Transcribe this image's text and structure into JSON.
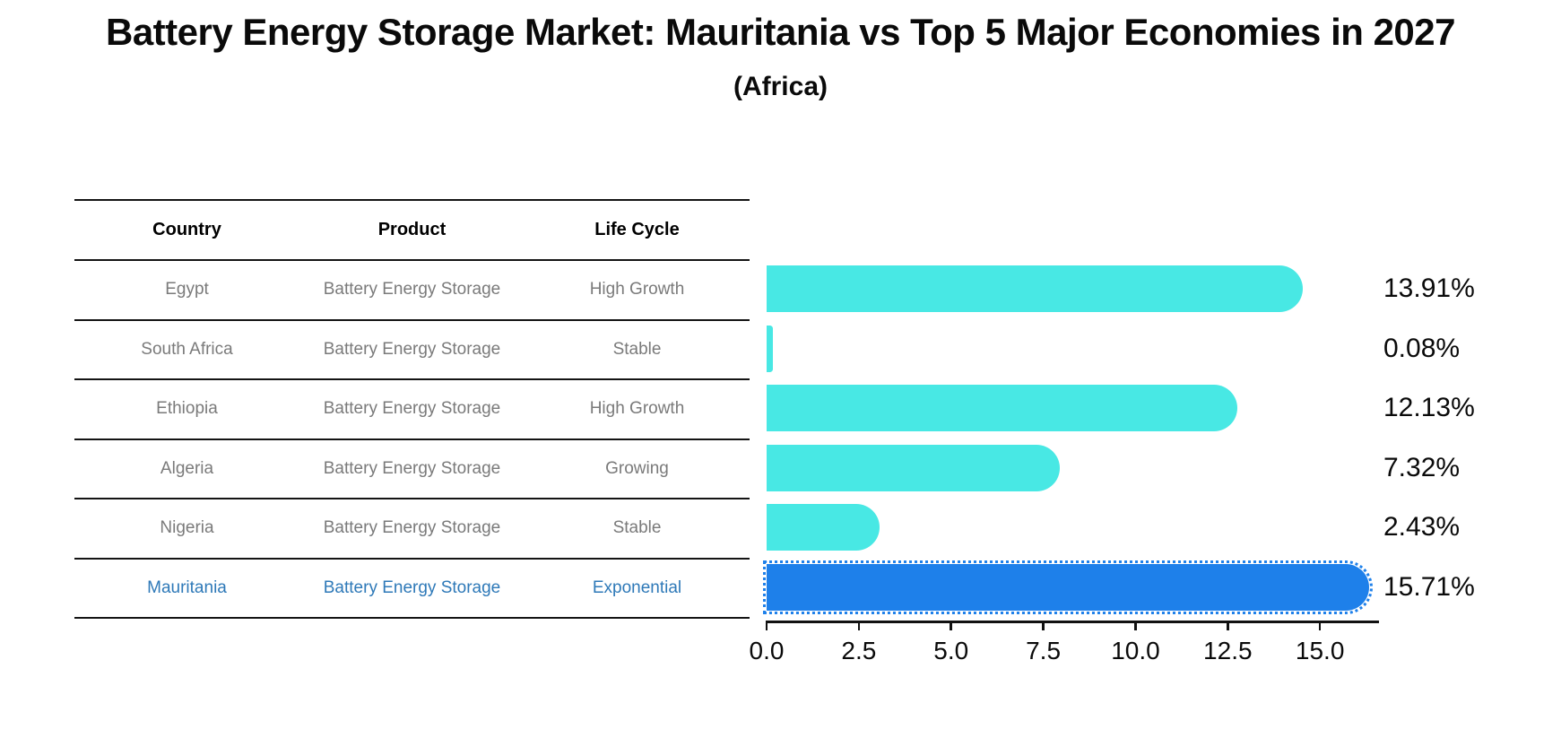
{
  "chart_data": {
    "type": "bar",
    "orientation": "horizontal",
    "title": "Battery Energy Storage Market: Mauritania vs Top 5 Major Economies in 2027",
    "subtitle": "(Africa)",
    "categories": [
      "Egypt",
      "South Africa",
      "Ethiopia",
      "Algeria",
      "Nigeria",
      "Mauritania"
    ],
    "values": [
      13.91,
      0.08,
      12.13,
      7.32,
      2.43,
      15.71
    ],
    "value_labels": [
      "13.91%",
      "0.08%",
      "12.13%",
      "7.32%",
      "2.43%",
      "15.71%"
    ],
    "xlabel": "",
    "ylabel": "",
    "xlim": [
      0,
      16.6
    ],
    "xticks": [
      "0.0",
      "2.5",
      "5.0",
      "7.5",
      "10.0",
      "12.5",
      "15.0"
    ],
    "grid": false,
    "legend": false,
    "bar_color": "#48e8e4",
    "highlight_color": "#1e80ea",
    "highlight_index": 5
  },
  "table": {
    "headers": [
      "Country",
      "Product",
      "Life Cycle"
    ],
    "rows": [
      {
        "country": "Egypt",
        "product": "Battery Energy Storage",
        "life_cycle": "High Growth"
      },
      {
        "country": "South Africa",
        "product": "Battery Energy Storage",
        "life_cycle": "Stable"
      },
      {
        "country": "Ethiopia",
        "product": "Battery Energy Storage",
        "life_cycle": "High Growth"
      },
      {
        "country": "Algeria",
        "product": "Battery Energy Storage",
        "life_cycle": "Growing"
      },
      {
        "country": "Nigeria",
        "product": "Battery Energy Storage",
        "life_cycle": "Stable"
      },
      {
        "country": "Mauritania",
        "product": "Battery Energy Storage",
        "life_cycle": "Exponential"
      }
    ],
    "row_text_color": "#7a7a7a",
    "highlight_row_index": 5,
    "highlight_text_color": "#2e79b8",
    "line_color": "#141414"
  }
}
